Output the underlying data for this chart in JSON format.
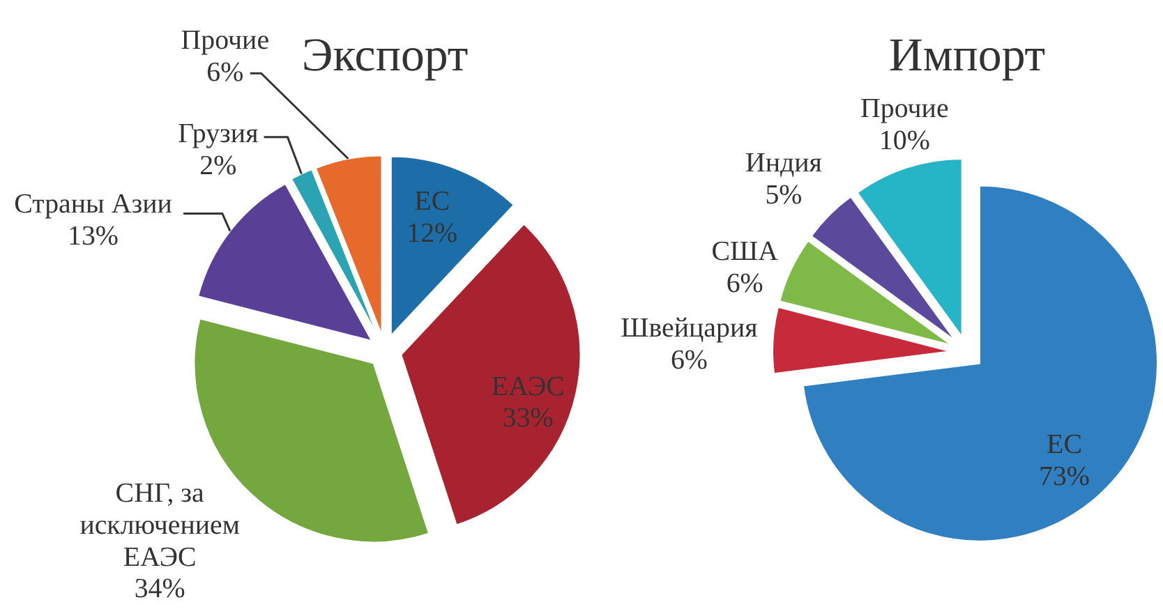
{
  "chart_data": [
    {
      "type": "pie",
      "title": "Экспорт",
      "categories": [
        "ЕС",
        "ЕАЭС",
        "СНГ, за исключением ЕАЭС",
        "Страны Азии",
        "Грузия",
        "Прочие"
      ],
      "values": [
        12,
        33,
        34,
        13,
        2,
        6
      ],
      "value_labels": [
        "12%",
        "33%",
        "34%",
        "13%",
        "2%",
        "6%"
      ],
      "colors": [
        "#1d6ea8",
        "#a8232f",
        "#74a83f",
        "#5a3f97",
        "#2ba3b3",
        "#e56a2c"
      ]
    },
    {
      "type": "pie",
      "title": "Импорт",
      "categories": [
        "ЕС",
        "Швейцария",
        "США",
        "Индия",
        "Прочие"
      ],
      "values": [
        73,
        6,
        6,
        5,
        10
      ],
      "value_labels": [
        "73%",
        "6%",
        "6%",
        "5%",
        "10%"
      ],
      "colors": [
        "#2f7fc1",
        "#c62a3b",
        "#7fba48",
        "#5b4a9c",
        "#26b4c7"
      ]
    }
  ]
}
